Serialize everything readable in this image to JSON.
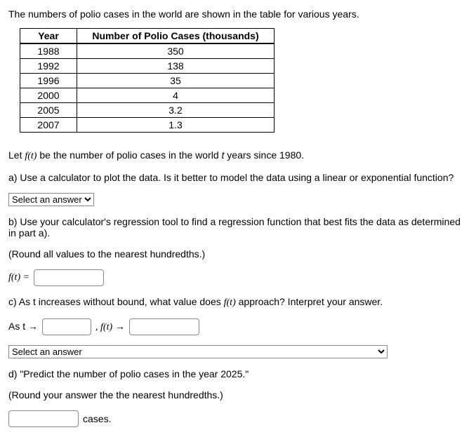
{
  "intro": "The numbers of polio cases in the world are shown in the table for various years.",
  "table": {
    "headers": [
      "Year",
      "Number of Polio Cases (thousands)"
    ],
    "col_widths": [
      "60px",
      "260px"
    ],
    "rows": [
      [
        "1988",
        "350"
      ],
      [
        "1992",
        "138"
      ],
      [
        "1996",
        "35"
      ],
      [
        "2000",
        "4"
      ],
      [
        "2005",
        "3.2"
      ],
      [
        "2007",
        "1.3"
      ]
    ]
  },
  "let_line": {
    "pre": "Let ",
    "fn": "f(t)",
    "post": " be the number of polio cases in the world ",
    "var": "t",
    "post2": " years since 1980."
  },
  "part_a": {
    "text": "a) Use a calculator to plot the data. Is it better to model the data using a linear or exponential function?",
    "select_placeholder": "Select an answer"
  },
  "part_b": {
    "text": "b) Use your calculator's regression tool to find a regression function that best fits the data as determined in part a).",
    "round": "(Round all values to the nearest hundredths.)",
    "fn_label": "f(t) ="
  },
  "part_c": {
    "text_pre": "c) As t increases without bound, what value does ",
    "fn": "f(t)",
    "text_post": " approach? Interpret your answer.",
    "as_t": "As t",
    "arrow": "→",
    "comma_fn": ", f(t)",
    "select_placeholder": "Select an answer"
  },
  "part_d": {
    "text": "d) \"Predict the number of polio cases in the year 2025.\"",
    "round": "(Round your answer the the nearest hundredths.)",
    "unit": "cases."
  }
}
